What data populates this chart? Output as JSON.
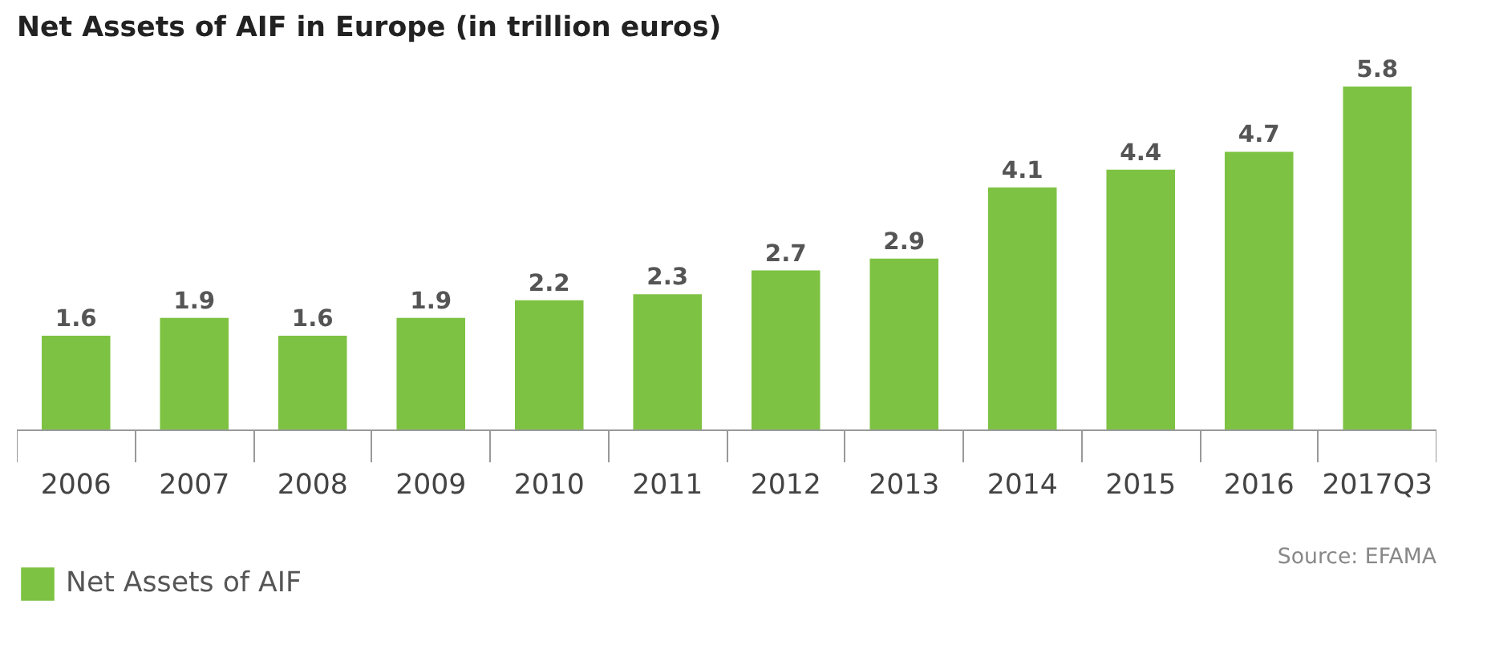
{
  "chart_data": {
    "type": "bar",
    "title": "Net Assets of AIF in Europe (in trillion euros)",
    "categories": [
      "2006",
      "2007",
      "2008",
      "2009",
      "2010",
      "2011",
      "2012",
      "2013",
      "2014",
      "2015",
      "2016",
      "2017Q3"
    ],
    "series": [
      {
        "name": "Net Assets of AIF",
        "color": "#7dc242",
        "values": [
          1.6,
          1.9,
          1.6,
          1.9,
          2.2,
          2.3,
          2.7,
          2.9,
          4.1,
          4.4,
          4.7,
          5.8
        ]
      }
    ],
    "data_labels": true,
    "grid": false,
    "legend": "bottom left",
    "annotations": [
      "Source: EFAMA"
    ]
  }
}
